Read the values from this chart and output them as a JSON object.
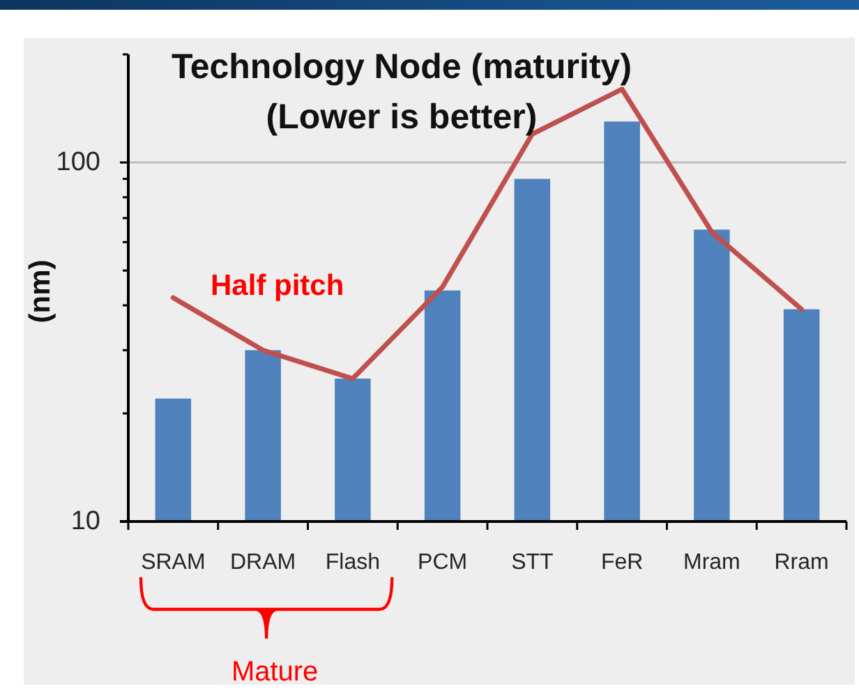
{
  "chart_data": {
    "type": "bar",
    "title": "Technology Node (maturity)\n(Lower is better)",
    "ylabel": "(nm)",
    "categories": [
      "SRAM",
      "DRAM",
      "Flash",
      "PCM",
      "STT",
      "FeR",
      "Mram",
      "Rram"
    ],
    "series": [
      {
        "color": "#4f81bd",
        "values": [
          22,
          30,
          25,
          44,
          90,
          130,
          65,
          39
        ]
      },
      {
        "type": "line",
        "name": "Half pitch",
        "color": "#c0504d",
        "values": [
          42,
          30,
          25,
          45,
          120,
          160,
          64,
          39
        ]
      }
    ],
    "log": "y",
    "ylim": [
      10,
      200
    ],
    "yticks": [
      10,
      {
        "value": 20,
        "label": null
      },
      {
        "value": 30,
        "label": null
      },
      {
        "value": 40,
        "label": null
      },
      {
        "value": 50,
        "label": null
      },
      {
        "value": 60,
        "label": null
      },
      {
        "value": 70,
        "label": null
      },
      {
        "value": 80,
        "label": null
      },
      {
        "value": 90,
        "label": null
      },
      100,
      {
        "value": 200,
        "label": null
      }
    ],
    "grid": "y",
    "annotations": [
      "Mature"
    ]
  }
}
